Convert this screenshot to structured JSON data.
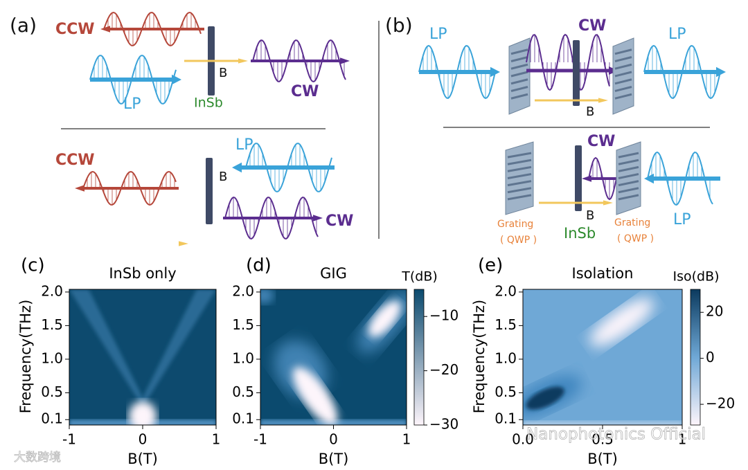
{
  "panel_a": {
    "label": "(a)",
    "top": {
      "ccw": "CCW",
      "b": "B",
      "insb": "InSb",
      "cw": "CW",
      "lp": "LP"
    },
    "bottom": {
      "ccw": "CCW",
      "lp": "LP",
      "b": "B",
      "cw": "CW"
    }
  },
  "panel_b": {
    "label": "(b)",
    "top": {
      "lp_in": "LP",
      "cw": "CW",
      "lp_out": "LP",
      "b": "B"
    },
    "bottom": {
      "cw": "CW",
      "grating_left": "Grating",
      "qwp_left": "( QWP )",
      "b": "B",
      "insb": "InSb",
      "grating_right": "Grating",
      "qwp_right": "( QWP )",
      "lp": "LP"
    }
  },
  "chart_data": [
    {
      "type": "heatmap",
      "label": "(c)",
      "title": "InSb only",
      "xlabel": "B(T)",
      "ylabel": "Frequency(THz)",
      "xlim": [
        -1,
        1
      ],
      "xticks": [
        -1,
        0,
        1
      ],
      "ylim": [
        0.02,
        2.04
      ],
      "yticks": [
        0.1,
        0.5,
        {
          "value": 1,
          "label": "1.0"
        },
        1.5,
        {
          "value": 2,
          "label": "2.0"
        }
      ]
    },
    {
      "type": "heatmap",
      "label": "(d)",
      "title": "GIG",
      "xlabel": "B(T)",
      "xlim": [
        -1,
        1
      ],
      "xticks": [
        -1,
        0,
        1
      ],
      "ylim": [
        0.02,
        2.04
      ],
      "yticks": [
        0.1,
        0.5,
        {
          "value": 1,
          "label": "1.0"
        },
        1.5,
        {
          "value": 2,
          "label": "2.0"
        }
      ],
      "colorbar": {
        "label": "T(dB)",
        "clim": [
          -30,
          -5
        ],
        "ticks": [
          {
            "value": -10,
            "label": "−10"
          },
          {
            "value": -20,
            "label": "−20"
          },
          {
            "value": -30,
            "label": "−30"
          }
        ],
        "colors": [
          "#fdf5fb",
          "#0b4a6e"
        ]
      }
    },
    {
      "type": "heatmap",
      "label": "(e)",
      "title": "Isolation",
      "xlabel": "B(T)",
      "ylabel": "Frequency(THz)",
      "xlim": [
        0,
        1
      ],
      "xticks": [
        {
          "value": 0,
          "label": "0.0"
        },
        0.5,
        1
      ],
      "ylim": [
        0.02,
        2.04
      ],
      "yticks": [
        0.1,
        0.5,
        {
          "value": 1,
          "label": "1.0"
        },
        1.5,
        {
          "value": 2,
          "label": "2.0"
        }
      ],
      "colorbar": {
        "label": "Iso(dB)",
        "clim": [
          -29,
          30
        ],
        "ticks": [
          20,
          0,
          {
            "value": -20,
            "label": "−20"
          }
        ],
        "colors": [
          "#fdf5fb",
          "#6fa8d6",
          "#0b3a5e"
        ]
      }
    }
  ],
  "watermarks": {
    "left": "大数跨境",
    "right": "Nanophotonics Official"
  }
}
